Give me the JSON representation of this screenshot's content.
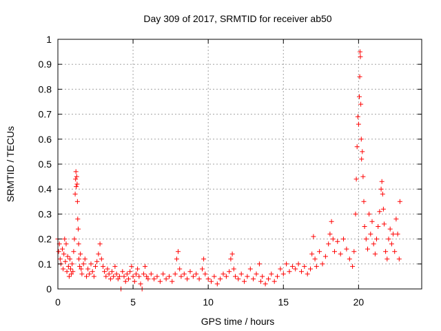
{
  "chart_data": {
    "type": "scatter",
    "title": "Day 309 of 2017, SRMTID for receiver ab50",
    "xlabel": "GPS time / hours",
    "ylabel": "SRMTID / TECUs",
    "xlim": [
      0,
      24.2
    ],
    "ylim": [
      0,
      1
    ],
    "xticks": [
      0,
      5,
      10,
      15,
      20
    ],
    "xtick_labels": [
      "0",
      "5",
      "10",
      "15",
      "20"
    ],
    "yticks": [
      0,
      0.1,
      0.2,
      0.3,
      0.4,
      0.5,
      0.6,
      0.7,
      0.8,
      0.9,
      1
    ],
    "ytick_labels": [
      "0",
      "0.1",
      "0.2",
      "0.3",
      "0.4",
      "0.5",
      "0.6",
      "0.7",
      "0.8",
      "0.9",
      "1"
    ],
    "grid": true,
    "marker": "+",
    "series_color": "#ff0000",
    "series": [
      {
        "name": "SRMTID",
        "points": [
          [
            0.0,
            0.2
          ],
          [
            0.05,
            0.15
          ],
          [
            0.1,
            0.18
          ],
          [
            0.15,
            0.12
          ],
          [
            0.2,
            0.1
          ],
          [
            0.3,
            0.16
          ],
          [
            0.35,
            0.08
          ],
          [
            0.4,
            0.14
          ],
          [
            0.45,
            0.2
          ],
          [
            0.5,
            0.11
          ],
          [
            0.55,
            0.18
          ],
          [
            0.6,
            0.07
          ],
          [
            0.65,
            0.13
          ],
          [
            0.7,
            0.09
          ],
          [
            0.75,
            0.05
          ],
          [
            0.8,
            0.12
          ],
          [
            0.85,
            0.08
          ],
          [
            0.9,
            0.06
          ],
          [
            0.95,
            0.1
          ],
          [
            1.0,
            0.07
          ],
          [
            1.05,
            0.15
          ],
          [
            1.1,
            0.2
          ],
          [
            1.15,
            0.38
          ],
          [
            1.18,
            0.44
          ],
          [
            1.2,
            0.47
          ],
          [
            1.22,
            0.41
          ],
          [
            1.25,
            0.45
          ],
          [
            1.28,
            0.42
          ],
          [
            1.3,
            0.35
          ],
          [
            1.32,
            0.28
          ],
          [
            1.35,
            0.24
          ],
          [
            1.38,
            0.18
          ],
          [
            1.4,
            0.12
          ],
          [
            1.45,
            0.09
          ],
          [
            1.5,
            0.14
          ],
          [
            1.55,
            0.08
          ],
          [
            1.6,
            0.06
          ],
          [
            1.7,
            0.1
          ],
          [
            1.8,
            0.12
          ],
          [
            1.9,
            0.05
          ],
          [
            2.0,
            0.08
          ],
          [
            2.1,
            0.06
          ],
          [
            2.2,
            0.1
          ],
          [
            2.3,
            0.07
          ],
          [
            2.4,
            0.05
          ],
          [
            2.5,
            0.09
          ],
          [
            2.6,
            0.11
          ],
          [
            2.7,
            0.14
          ],
          [
            2.8,
            0.18
          ],
          [
            2.9,
            0.12
          ],
          [
            3.0,
            0.09
          ],
          [
            3.1,
            0.07
          ],
          [
            3.2,
            0.05
          ],
          [
            3.3,
            0.08
          ],
          [
            3.4,
            0.06
          ],
          [
            3.5,
            0.04
          ],
          [
            3.6,
            0.07
          ],
          [
            3.7,
            0.05
          ],
          [
            3.8,
            0.09
          ],
          [
            3.9,
            0.06
          ],
          [
            4.0,
            0.04
          ],
          [
            4.1,
            0.05
          ],
          [
            4.2,
            0.0
          ],
          [
            4.3,
            0.07
          ],
          [
            4.4,
            0.05
          ],
          [
            4.5,
            0.03
          ],
          [
            4.6,
            0.06
          ],
          [
            4.7,
            0.04
          ],
          [
            4.8,
            0.07
          ],
          [
            4.9,
            0.09
          ],
          [
            5.0,
            0.05
          ],
          [
            5.1,
            0.03
          ],
          [
            5.2,
            0.06
          ],
          [
            5.3,
            0.08
          ],
          [
            5.4,
            0.05
          ],
          [
            5.5,
            0.02
          ],
          [
            5.6,
            0.0
          ],
          [
            5.7,
            0.06
          ],
          [
            5.8,
            0.09
          ],
          [
            5.9,
            0.05
          ],
          [
            6.0,
            0.04
          ],
          [
            6.2,
            0.06
          ],
          [
            6.4,
            0.04
          ],
          [
            6.6,
            0.05
          ],
          [
            6.8,
            0.03
          ],
          [
            7.0,
            0.06
          ],
          [
            7.2,
            0.04
          ],
          [
            7.4,
            0.05
          ],
          [
            7.6,
            0.03
          ],
          [
            7.8,
            0.06
          ],
          [
            7.9,
            0.12
          ],
          [
            8.0,
            0.15
          ],
          [
            8.1,
            0.08
          ],
          [
            8.2,
            0.05
          ],
          [
            8.4,
            0.06
          ],
          [
            8.6,
            0.04
          ],
          [
            8.8,
            0.07
          ],
          [
            9.0,
            0.05
          ],
          [
            9.2,
            0.06
          ],
          [
            9.4,
            0.04
          ],
          [
            9.6,
            0.08
          ],
          [
            9.7,
            0.12
          ],
          [
            9.8,
            0.06
          ],
          [
            10.0,
            0.04
          ],
          [
            10.2,
            0.03
          ],
          [
            10.4,
            0.05
          ],
          [
            10.6,
            0.02
          ],
          [
            10.8,
            0.04
          ],
          [
            11.0,
            0.06
          ],
          [
            11.2,
            0.05
          ],
          [
            11.4,
            0.07
          ],
          [
            11.5,
            0.12
          ],
          [
            11.6,
            0.14
          ],
          [
            11.7,
            0.08
          ],
          [
            11.8,
            0.05
          ],
          [
            12.0,
            0.04
          ],
          [
            12.2,
            0.06
          ],
          [
            12.4,
            0.03
          ],
          [
            12.6,
            0.05
          ],
          [
            12.8,
            0.08
          ],
          [
            13.0,
            0.04
          ],
          [
            13.2,
            0.06
          ],
          [
            13.4,
            0.1
          ],
          [
            13.5,
            0.03
          ],
          [
            13.6,
            0.05
          ],
          [
            13.8,
            0.02
          ],
          [
            14.0,
            0.04
          ],
          [
            14.2,
            0.06
          ],
          [
            14.4,
            0.03
          ],
          [
            14.6,
            0.05
          ],
          [
            14.8,
            0.08
          ],
          [
            15.0,
            0.06
          ],
          [
            15.2,
            0.1
          ],
          [
            15.4,
            0.07
          ],
          [
            15.6,
            0.09
          ],
          [
            15.8,
            0.08
          ],
          [
            16.0,
            0.1
          ],
          [
            16.2,
            0.07
          ],
          [
            16.4,
            0.09
          ],
          [
            16.6,
            0.06
          ],
          [
            16.8,
            0.08
          ],
          [
            16.9,
            0.14
          ],
          [
            17.0,
            0.21
          ],
          [
            17.1,
            0.12
          ],
          [
            17.2,
            0.09
          ],
          [
            17.4,
            0.15
          ],
          [
            17.6,
            0.1
          ],
          [
            17.8,
            0.13
          ],
          [
            18.0,
            0.18
          ],
          [
            18.1,
            0.22
          ],
          [
            18.2,
            0.27
          ],
          [
            18.3,
            0.2
          ],
          [
            18.4,
            0.15
          ],
          [
            18.6,
            0.19
          ],
          [
            18.8,
            0.14
          ],
          [
            19.0,
            0.2
          ],
          [
            19.2,
            0.16
          ],
          [
            19.4,
            0.12
          ],
          [
            19.6,
            0.09
          ],
          [
            19.7,
            0.15
          ],
          [
            19.8,
            0.3
          ],
          [
            19.85,
            0.44
          ],
          [
            19.9,
            0.57
          ],
          [
            19.95,
            0.69
          ],
          [
            20.0,
            0.66
          ],
          [
            20.05,
            0.77
          ],
          [
            20.08,
            0.85
          ],
          [
            20.1,
            0.95
          ],
          [
            20.12,
            0.93
          ],
          [
            20.15,
            0.74
          ],
          [
            20.18,
            0.6
          ],
          [
            20.2,
            0.52
          ],
          [
            20.25,
            0.55
          ],
          [
            20.3,
            0.45
          ],
          [
            20.35,
            0.35
          ],
          [
            20.4,
            0.25
          ],
          [
            20.5,
            0.2
          ],
          [
            20.6,
            0.16
          ],
          [
            20.7,
            0.3
          ],
          [
            20.8,
            0.22
          ],
          [
            20.9,
            0.27
          ],
          [
            21.0,
            0.18
          ],
          [
            21.1,
            0.14
          ],
          [
            21.2,
            0.2
          ],
          [
            21.3,
            0.25
          ],
          [
            21.4,
            0.31
          ],
          [
            21.5,
            0.4
          ],
          [
            21.55,
            0.43
          ],
          [
            21.6,
            0.38
          ],
          [
            21.65,
            0.32
          ],
          [
            21.7,
            0.26
          ],
          [
            21.8,
            0.15
          ],
          [
            21.9,
            0.12
          ],
          [
            22.0,
            0.2
          ],
          [
            22.1,
            0.24
          ],
          [
            22.2,
            0.18
          ],
          [
            22.3,
            0.22
          ],
          [
            22.4,
            0.15
          ],
          [
            22.5,
            0.28
          ],
          [
            22.6,
            0.22
          ],
          [
            22.7,
            0.12
          ],
          [
            22.75,
            0.35
          ]
        ]
      }
    ]
  }
}
